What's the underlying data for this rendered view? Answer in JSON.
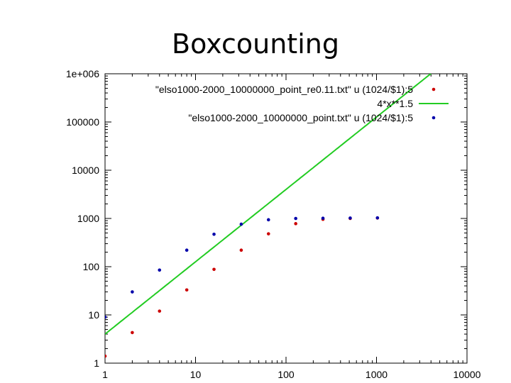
{
  "slide": {
    "title": "Boxcounting"
  },
  "chart_data": {
    "type": "scatter",
    "title": "",
    "xlabel": "",
    "ylabel": "",
    "x_scale": "log",
    "y_scale": "log",
    "xlim": [
      1,
      10000
    ],
    "ylim": [
      1,
      1000000
    ],
    "x_ticks": [
      {
        "value": 1,
        "label": "1"
      },
      {
        "value": 10,
        "label": "10"
      },
      {
        "value": 100,
        "label": "100"
      },
      {
        "value": 1000,
        "label": "1000"
      },
      {
        "value": 10000,
        "label": "10000"
      }
    ],
    "y_ticks": [
      {
        "value": 1,
        "label": "1"
      },
      {
        "value": 10,
        "label": "10"
      },
      {
        "value": 100,
        "label": "100"
      },
      {
        "value": 1000,
        "label": "1000"
      },
      {
        "value": 10000,
        "label": "10000"
      },
      {
        "value": 100000,
        "label": "100000"
      },
      {
        "value": 1000000,
        "label": "1e+006"
      }
    ],
    "grid": false,
    "legend_position": "top-right",
    "series": [
      {
        "name": "\"elso1000-2000_10000000_point_re0.11.txt\" u (1024/$1):5",
        "kind": "points",
        "color": "#cc0000",
        "x": [
          1,
          2,
          4,
          8,
          16,
          32,
          64,
          128,
          256,
          512,
          1024
        ],
        "y": [
          1.4,
          4.3,
          12,
          33,
          88,
          220,
          480,
          780,
          960,
          1000,
          1020
        ]
      },
      {
        "name": "4*x**1.5",
        "kind": "line",
        "color": "#22cc22",
        "function": "4*x**1.5"
      },
      {
        "name": "\"elso1000-2000_10000000_point.txt\" u (1024/$1):5",
        "kind": "points",
        "color": "#0000aa",
        "x": [
          1,
          2,
          4,
          8,
          16,
          32,
          64,
          128,
          256,
          512,
          1024
        ],
        "y": [
          9,
          30,
          85,
          220,
          470,
          760,
          940,
          1000,
          1010,
          1020,
          1030
        ]
      }
    ]
  }
}
